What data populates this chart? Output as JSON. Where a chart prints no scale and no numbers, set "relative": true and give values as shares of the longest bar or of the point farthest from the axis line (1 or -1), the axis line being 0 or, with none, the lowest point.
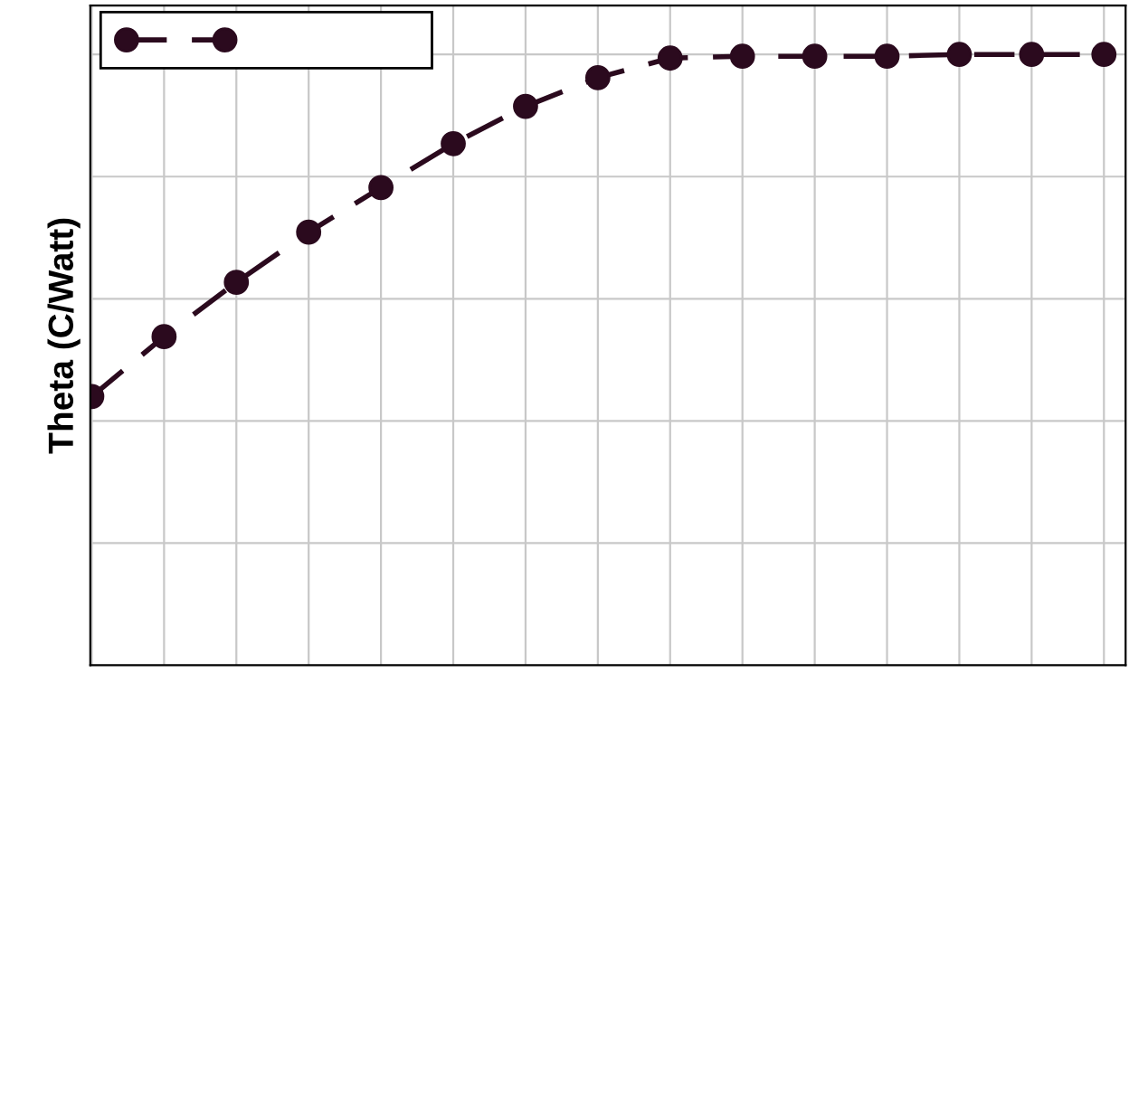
{
  "chart_data": {
    "type": "line",
    "ylabel": "Theta (C/Watt)",
    "relative": true,
    "categories": [
      null,
      null,
      null,
      null,
      null,
      null,
      null,
      null,
      null,
      null,
      null,
      null,
      null,
      null,
      null
    ],
    "series": [
      {
        "color": "#2b0a1e",
        "values": [
          0.44,
          0.538,
          0.627,
          0.709,
          0.782,
          0.854,
          0.915,
          0.962,
          0.994,
          0.997,
          0.997,
          0.997,
          1,
          1,
          1
        ]
      }
    ],
    "marker": "circle",
    "line_style": "dashed",
    "grid": true
  }
}
